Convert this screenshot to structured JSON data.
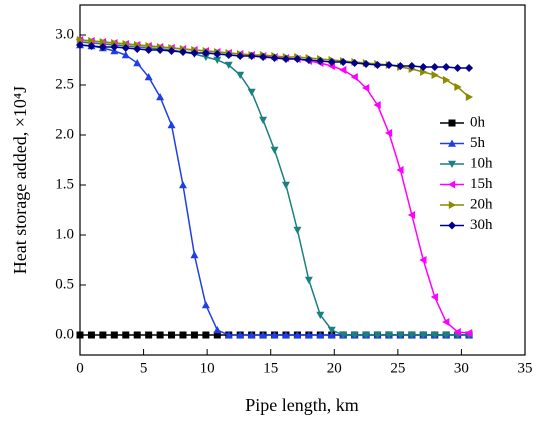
{
  "chart_data": {
    "type": "line",
    "xlabel": "Pipe length, km",
    "ylabel": "Heat storage added, ×10⁴J",
    "xlim": [
      0,
      35
    ],
    "ylim": [
      -0.2,
      3.3
    ],
    "xticks": [
      0,
      5,
      10,
      15,
      20,
      25,
      30,
      35
    ],
    "yticks": [
      {
        "value": 0,
        "label": "0.0"
      },
      {
        "value": 0.5,
        "label": "0.5"
      },
      {
        "value": 1,
        "label": "1.0"
      },
      {
        "value": 1.5,
        "label": "1.5"
      },
      {
        "value": 2,
        "label": "2.0"
      },
      {
        "value": 2.5,
        "label": "2.5"
      },
      {
        "value": 3,
        "label": "3.0"
      }
    ],
    "legend": "right",
    "x": [
      0,
      0.9,
      1.8,
      2.7,
      3.6,
      4.5,
      5.4,
      6.3,
      7.2,
      8.1,
      9,
      9.9,
      10.8,
      11.7,
      12.6,
      13.5,
      14.4,
      15.3,
      16.2,
      17.1,
      18,
      18.9,
      19.8,
      20.7,
      21.6,
      22.5,
      23.4,
      24.3,
      25.2,
      26.1,
      27,
      27.9,
      28.8,
      29.7,
      30.6
    ],
    "series": [
      {
        "name": "0h",
        "color": "#000000",
        "marker": "square",
        "values": [
          0,
          0,
          0,
          0,
          0,
          0,
          0,
          0,
          0,
          0,
          0,
          0,
          0,
          0,
          0,
          0,
          0,
          0,
          0,
          0,
          0,
          0,
          0,
          0,
          0,
          0,
          0,
          0,
          0,
          0,
          0,
          0,
          0,
          0,
          0
        ]
      },
      {
        "name": "5h",
        "color": "#1f3fe6",
        "marker": "triangle-up",
        "values": [
          2.9,
          2.89,
          2.87,
          2.84,
          2.8,
          2.72,
          2.58,
          2.38,
          2.1,
          1.5,
          0.8,
          0.3,
          0.05,
          0,
          0,
          0,
          0,
          0,
          0,
          0,
          0,
          0,
          0,
          0,
          0,
          0,
          0,
          0,
          0,
          0,
          0,
          0,
          0,
          0,
          0
        ]
      },
      {
        "name": "10h",
        "color": "#1a8080",
        "marker": "triangle-down",
        "values": [
          2.93,
          2.92,
          2.91,
          2.9,
          2.89,
          2.88,
          2.87,
          2.86,
          2.85,
          2.83,
          2.81,
          2.78,
          2.75,
          2.7,
          2.6,
          2.43,
          2.15,
          1.85,
          1.5,
          1.05,
          0.55,
          0.2,
          0.05,
          0,
          0,
          0,
          0,
          0,
          0,
          0,
          0,
          0,
          0,
          0,
          0
        ]
      },
      {
        "name": "15h",
        "color": "#ff00ff",
        "marker": "triangle-left",
        "values": [
          2.95,
          2.94,
          2.93,
          2.92,
          2.91,
          2.9,
          2.89,
          2.88,
          2.87,
          2.86,
          2.85,
          2.84,
          2.83,
          2.82,
          2.81,
          2.8,
          2.79,
          2.78,
          2.77,
          2.76,
          2.74,
          2.72,
          2.69,
          2.65,
          2.58,
          2.47,
          2.3,
          2.02,
          1.65,
          1.2,
          0.75,
          0.38,
          0.13,
          0.03,
          0.02
        ]
      },
      {
        "name": "20h",
        "color": "#8b8b00",
        "marker": "triangle-right",
        "values": [
          2.95,
          2.94,
          2.93,
          2.92,
          2.91,
          2.9,
          2.89,
          2.88,
          2.87,
          2.86,
          2.85,
          2.84,
          2.83,
          2.82,
          2.81,
          2.8,
          2.8,
          2.79,
          2.78,
          2.78,
          2.77,
          2.76,
          2.75,
          2.74,
          2.73,
          2.72,
          2.71,
          2.7,
          2.68,
          2.66,
          2.63,
          2.6,
          2.55,
          2.48,
          2.38
        ]
      },
      {
        "name": "30h",
        "color": "#00008b",
        "marker": "diamond",
        "values": [
          2.9,
          2.89,
          2.88,
          2.88,
          2.87,
          2.86,
          2.85,
          2.85,
          2.84,
          2.83,
          2.82,
          2.82,
          2.81,
          2.8,
          2.79,
          2.79,
          2.78,
          2.77,
          2.76,
          2.76,
          2.75,
          2.74,
          2.73,
          2.73,
          2.72,
          2.71,
          2.7,
          2.7,
          2.69,
          2.69,
          2.68,
          2.68,
          2.68,
          2.67,
          2.67
        ]
      }
    ]
  }
}
